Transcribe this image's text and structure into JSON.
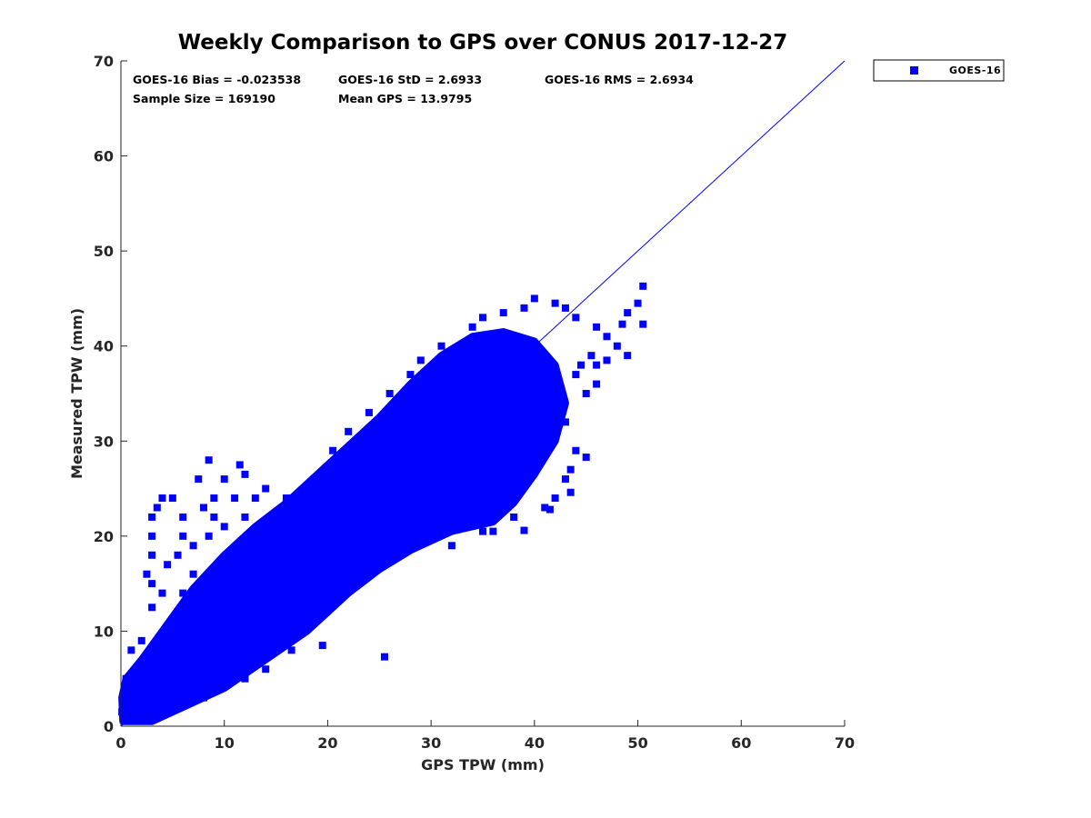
{
  "chart_data": {
    "type": "scatter",
    "title": "Weekly Comparison to GPS over CONUS 2017-12-27",
    "xlabel": "GPS TPW (mm)",
    "ylabel": "Measured TPW (mm)",
    "xlim": [
      0,
      70
    ],
    "ylim": [
      0,
      70
    ],
    "xticks": [
      "0",
      "10",
      "20",
      "30",
      "40",
      "50",
      "60",
      "70"
    ],
    "yticks": [
      "0",
      "10",
      "20",
      "30",
      "40",
      "50",
      "60",
      "70"
    ],
    "grid": false,
    "legend": {
      "position": "outside-top-right",
      "entries": [
        "GOES-16"
      ]
    },
    "stats": {
      "bias": "GOES-16 Bias = -0.023538",
      "std": "GOES-16 StD = 2.6933",
      "rms": "GOES-16 RMS = 2.6934",
      "sample_size": "Sample Size = 169190",
      "mean_gps": "Mean GPS = 13.9795"
    },
    "reference_line": {
      "from": [
        0,
        0
      ],
      "to": [
        70,
        70
      ]
    },
    "series": [
      {
        "name": "GOES-16",
        "color": "#0000ff",
        "marker": "square",
        "dense_region": [
          [
            0.2,
            0.5
          ],
          [
            3,
            0.5
          ],
          [
            6,
            2
          ],
          [
            10,
            4
          ],
          [
            14,
            7
          ],
          [
            18,
            10
          ],
          [
            22,
            14
          ],
          [
            25,
            16.5
          ],
          [
            28,
            18.5
          ],
          [
            32,
            20.5
          ],
          [
            36,
            21.5
          ],
          [
            38,
            23.5
          ],
          [
            40,
            26.5
          ],
          [
            42,
            30
          ],
          [
            43,
            34
          ],
          [
            42,
            38
          ],
          [
            40,
            40.5
          ],
          [
            37,
            41.5
          ],
          [
            34,
            41
          ],
          [
            31,
            39
          ],
          [
            28,
            36
          ],
          [
            25,
            32.5
          ],
          [
            22,
            29.5
          ],
          [
            19,
            26.5
          ],
          [
            16,
            23.5
          ],
          [
            13,
            21
          ],
          [
            10,
            18
          ],
          [
            7,
            14.5
          ],
          [
            4,
            10
          ],
          [
            2,
            7
          ],
          [
            0.5,
            5
          ],
          [
            0.1,
            3
          ]
        ],
        "points": [
          [
            8.5,
            28
          ],
          [
            7.5,
            26
          ],
          [
            10,
            26
          ],
          [
            11.5,
            27.5
          ],
          [
            12,
            26.5
          ],
          [
            4,
            24
          ],
          [
            5,
            24
          ],
          [
            3.5,
            23
          ],
          [
            3,
            22
          ],
          [
            3,
            20
          ],
          [
            3,
            18
          ],
          [
            2.5,
            16
          ],
          [
            3,
            15
          ],
          [
            4,
            14
          ],
          [
            6,
            20
          ],
          [
            7,
            19
          ],
          [
            9,
            22
          ],
          [
            10,
            21
          ],
          [
            13,
            24
          ],
          [
            14,
            25
          ],
          [
            16,
            24
          ],
          [
            19,
            26
          ],
          [
            20,
            27
          ],
          [
            20.5,
            29
          ],
          [
            22,
            31
          ],
          [
            24,
            33
          ],
          [
            26,
            35
          ],
          [
            28,
            37
          ],
          [
            29,
            38.5
          ],
          [
            31,
            40
          ],
          [
            34,
            42
          ],
          [
            35,
            43
          ],
          [
            37,
            43.5
          ],
          [
            39,
            44
          ],
          [
            40,
            45
          ],
          [
            42,
            44.5
          ],
          [
            43,
            44
          ],
          [
            44,
            43
          ],
          [
            46,
            42
          ],
          [
            47,
            41
          ],
          [
            48,
            40
          ],
          [
            49,
            39
          ],
          [
            46,
            38
          ],
          [
            44,
            37
          ],
          [
            45,
            35
          ],
          [
            43,
            32
          ],
          [
            44,
            29
          ],
          [
            43.5,
            27
          ],
          [
            43,
            26
          ],
          [
            42,
            24
          ],
          [
            41,
            23
          ],
          [
            38,
            22
          ],
          [
            36,
            20.5
          ],
          [
            35,
            20.5
          ],
          [
            32,
            19
          ],
          [
            25.5,
            7.3
          ],
          [
            19.5,
            8.5
          ],
          [
            16.5,
            8
          ],
          [
            19,
            13
          ],
          [
            14,
            6
          ],
          [
            50.5,
            46.3
          ],
          [
            50,
            44.5
          ],
          [
            50.5,
            42.3
          ],
          [
            49,
            43.5
          ],
          [
            48.5,
            42.3
          ],
          [
            43.5,
            24.6
          ],
          [
            27,
            19.5
          ],
          [
            24,
            17
          ],
          [
            22,
            17
          ],
          [
            5,
            11
          ],
          [
            6,
            14
          ],
          [
            2,
            9
          ],
          [
            1,
            8
          ],
          [
            0.5,
            5
          ],
          [
            0.1,
            1.5
          ],
          [
            0.3,
            3
          ],
          [
            30,
            22
          ],
          [
            33,
            23
          ],
          [
            37,
            25
          ],
          [
            40,
            30
          ],
          [
            41,
            35
          ],
          [
            6,
            22
          ],
          [
            8,
            23
          ],
          [
            11,
            24
          ],
          [
            4.5,
            17
          ],
          [
            5.5,
            18
          ],
          [
            7,
            16
          ],
          [
            8.5,
            20
          ],
          [
            9,
            24
          ],
          [
            12,
            22
          ],
          [
            15,
            20
          ],
          [
            3,
            12.5
          ],
          [
            1.5,
            5
          ],
          [
            2,
            3
          ],
          [
            4,
            2
          ],
          [
            8,
            3
          ],
          [
            12,
            5
          ],
          [
            44.5,
            38
          ],
          [
            45.5,
            39
          ],
          [
            47,
            38.5
          ],
          [
            46,
            36
          ],
          [
            41.5,
            22.8
          ],
          [
            39,
            20.6
          ],
          [
            45,
            28.3
          ]
        ]
      }
    ]
  }
}
